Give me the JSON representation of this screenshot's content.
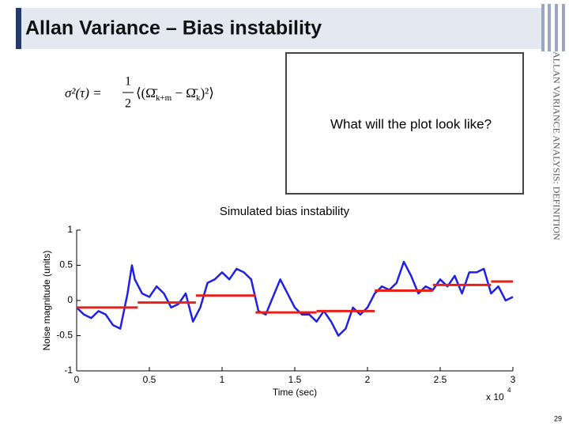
{
  "slide": {
    "title": "Allan Variance – Bias instability",
    "formula": {
      "lhs": "σ²(τ) =",
      "numerator": "1",
      "denominator": "2",
      "open": "⟨(Ω̄",
      "sub1": "k+m",
      "minus": " − Ω̄",
      "sub2": "k",
      "close": ")²⟩"
    },
    "question": "What will the plot look like?",
    "side_label": "ALLAN VARIANCE ANALYSIS: DEFINITION",
    "page_number": "29"
  },
  "chart_data": {
    "type": "line",
    "title": "Simulated bias instability",
    "xlabel": "Time (sec)",
    "ylabel": "Noise magnitude (units)",
    "x_scale": {
      "base": "x 10",
      "exponent": "4"
    },
    "color": "#1f1fe6",
    "x": [
      0,
      0.05,
      0.1,
      0.15,
      0.2,
      0.25,
      0.3,
      0.35,
      0.38,
      0.4,
      0.45,
      0.5,
      0.55,
      0.6,
      0.65,
      0.7,
      0.75,
      0.8,
      0.85,
      0.9,
      0.95,
      1.0,
      1.05,
      1.1,
      1.15,
      1.2,
      1.25,
      1.3,
      1.35,
      1.4,
      1.45,
      1.5,
      1.55,
      1.6,
      1.65,
      1.7,
      1.75,
      1.8,
      1.85,
      1.9,
      1.95,
      2.0,
      2.05,
      2.1,
      2.15,
      2.2,
      2.25,
      2.3,
      2.35,
      2.4,
      2.45,
      2.5,
      2.55,
      2.6,
      2.65,
      2.7,
      2.75,
      2.8,
      2.85,
      2.9,
      2.95,
      3.0
    ],
    "values": [
      -0.1,
      -0.2,
      -0.25,
      -0.15,
      -0.2,
      -0.35,
      -0.4,
      0.1,
      0.5,
      0.3,
      0.1,
      0.05,
      0.2,
      0.1,
      -0.1,
      -0.05,
      0.1,
      -0.3,
      -0.1,
      0.25,
      0.3,
      0.4,
      0.3,
      0.45,
      0.4,
      0.3,
      -0.15,
      -0.2,
      0.05,
      0.3,
      0.1,
      -0.1,
      -0.2,
      -0.2,
      -0.3,
      -0.15,
      -0.3,
      -0.5,
      -0.4,
      -0.1,
      -0.2,
      -0.1,
      0.1,
      0.2,
      0.15,
      0.25,
      0.55,
      0.35,
      0.1,
      0.2,
      0.15,
      0.3,
      0.2,
      0.35,
      0.1,
      0.4,
      0.4,
      0.45,
      0.1,
      0.2,
      0.0,
      0.05
    ],
    "segments": {
      "color": "#e8201a",
      "x_start": [
        0,
        0.42,
        0.82,
        1.23,
        1.65,
        2.05,
        2.45,
        2.85
      ],
      "x_end": [
        0.42,
        0.82,
        1.23,
        1.65,
        2.05,
        2.45,
        2.85,
        3.0
      ],
      "values": [
        -0.1,
        -0.03,
        0.07,
        -0.17,
        -0.15,
        0.14,
        0.22,
        0.27
      ]
    },
    "xlim": [
      0,
      3
    ],
    "ylim": [
      -1,
      1
    ],
    "xticks": [
      0,
      0.5,
      1,
      1.5,
      2,
      2.5,
      3
    ],
    "yticks": [
      -1,
      -0.5,
      0,
      0.5,
      1
    ]
  }
}
